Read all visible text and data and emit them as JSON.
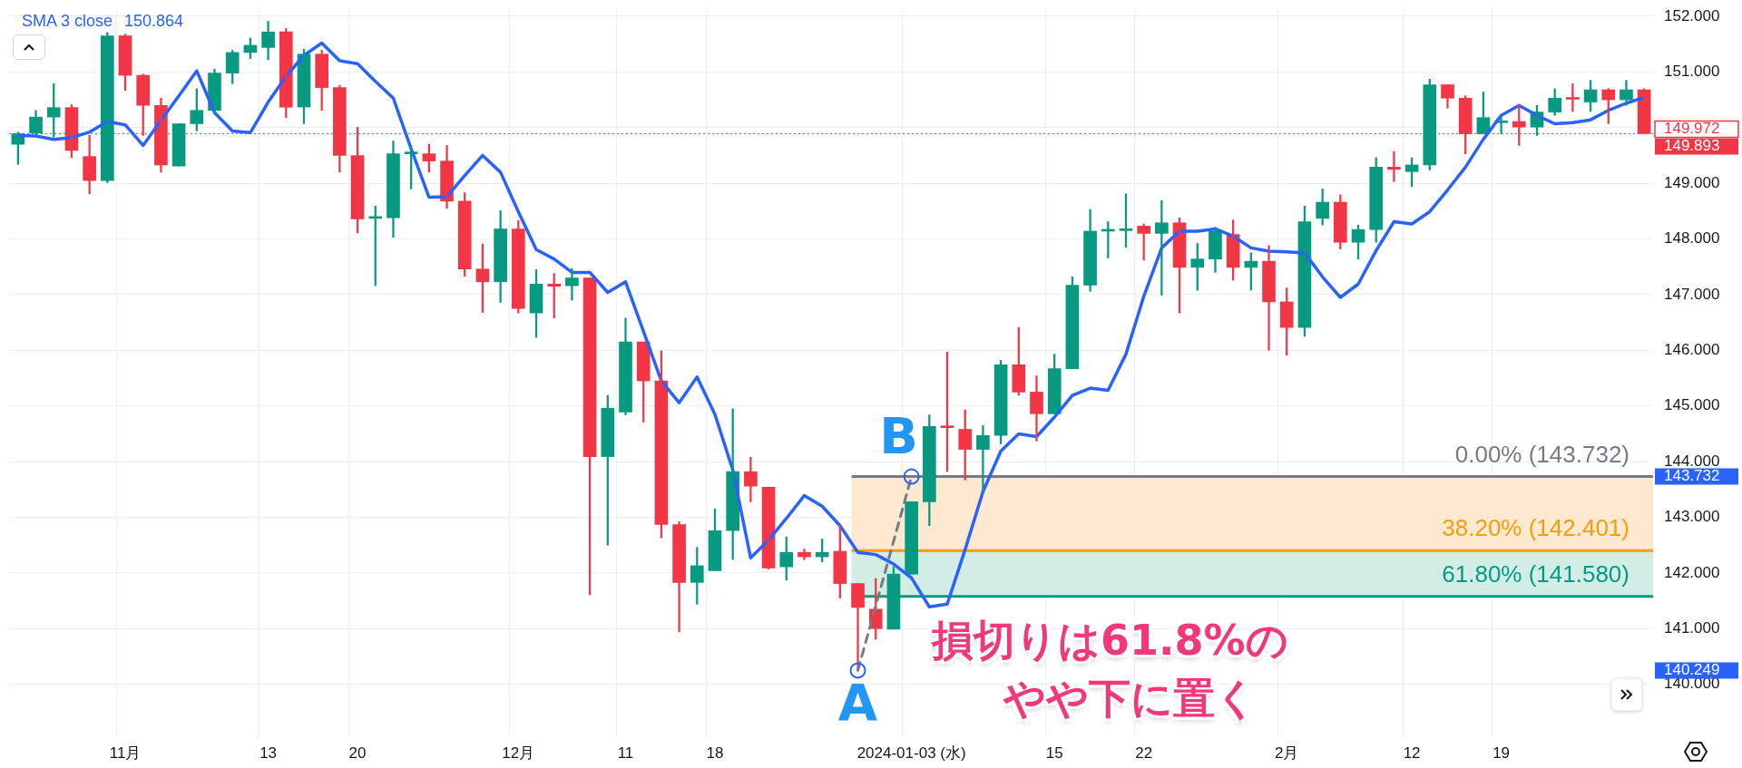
{
  "chart_data": {
    "type": "candlestick",
    "categories": [
      null,
      null,
      null,
      null,
      null,
      null,
      "11月",
      null,
      null,
      null,
      null,
      null,
      null,
      null,
      "13",
      null,
      null,
      null,
      null,
      "20",
      null,
      null,
      null,
      null,
      null,
      null,
      null,
      null,
      "12月",
      null,
      null,
      null,
      null,
      null,
      "11",
      null,
      null,
      null,
      null,
      "18",
      null,
      null,
      null,
      null,
      null,
      null,
      null,
      null,
      null,
      null,
      "2024-01-03 (水)",
      null,
      null,
      null,
      null,
      null,
      null,
      null,
      "15",
      null,
      null,
      null,
      null,
      "22",
      null,
      null,
      null,
      null,
      null,
      null,
      null,
      "2月",
      null,
      null,
      null,
      null,
      null,
      null,
      "12",
      null,
      null,
      null,
      null,
      "19",
      null,
      null,
      null,
      null,
      null,
      null,
      null,
      null
    ],
    "ohlc": [
      [
        149.7,
        149.92,
        149.34,
        149.89
      ],
      [
        149.9,
        150.31,
        149.86,
        150.19
      ],
      [
        150.19,
        150.79,
        149.83,
        150.36
      ],
      [
        150.36,
        150.41,
        149.46,
        149.59
      ],
      [
        149.48,
        149.86,
        148.81,
        149.05
      ],
      [
        149.05,
        151.71,
        149.01,
        151.65
      ],
      [
        151.65,
        151.68,
        150.67,
        150.94
      ],
      [
        150.94,
        150.96,
        149.86,
        150.4
      ],
      [
        150.4,
        150.53,
        149.2,
        149.33
      ],
      [
        149.31,
        150.07,
        149.31,
        150.07
      ],
      [
        150.07,
        150.7,
        149.94,
        150.31
      ],
      [
        150.31,
        151.05,
        150.27,
        150.98
      ],
      [
        150.98,
        151.39,
        150.79,
        151.35
      ],
      [
        151.35,
        151.61,
        151.24,
        151.48
      ],
      [
        151.44,
        151.91,
        151.22,
        151.72
      ],
      [
        151.72,
        151.78,
        150.18,
        150.37
      ],
      [
        150.37,
        151.41,
        150.07,
        151.32
      ],
      [
        151.32,
        151.39,
        150.31,
        150.72
      ],
      [
        150.72,
        150.76,
        149.2,
        149.5
      ],
      [
        149.5,
        150.01,
        148.11,
        148.36
      ],
      [
        148.37,
        148.59,
        147.16,
        148.38
      ],
      [
        148.38,
        149.76,
        148.03,
        149.53
      ],
      [
        149.53,
        149.68,
        148.9,
        149.55
      ],
      [
        149.53,
        149.7,
        149.2,
        149.4
      ],
      [
        149.4,
        149.68,
        148.55,
        148.68
      ],
      [
        148.68,
        148.83,
        147.33,
        147.46
      ],
      [
        147.46,
        147.91,
        146.68,
        147.23
      ],
      [
        147.23,
        148.51,
        146.86,
        148.18
      ],
      [
        148.18,
        148.33,
        146.67,
        146.75
      ],
      [
        146.67,
        147.45,
        146.23,
        147.19
      ],
      [
        147.19,
        147.38,
        146.58,
        147.15
      ],
      [
        147.16,
        147.47,
        146.9,
        147.3
      ],
      [
        147.3,
        147.3,
        141.61,
        144.09
      ],
      [
        144.09,
        145.19,
        142.5,
        144.96
      ],
      [
        144.89,
        146.58,
        144.84,
        146.15
      ],
      [
        146.15,
        146.15,
        144.71,
        145.45
      ],
      [
        145.45,
        145.99,
        142.63,
        142.87
      ],
      [
        142.87,
        142.92,
        140.94,
        141.83
      ],
      [
        141.83,
        142.46,
        141.44,
        142.13
      ],
      [
        142.04,
        143.15,
        142.04,
        142.76
      ],
      [
        142.76,
        144.95,
        142.24,
        143.82
      ],
      [
        143.82,
        144.08,
        143.28,
        143.56
      ],
      [
        143.54,
        143.54,
        142.07,
        142.09
      ],
      [
        142.11,
        142.65,
        141.87,
        142.37
      ],
      [
        142.37,
        142.43,
        142.24,
        142.29
      ],
      [
        142.29,
        142.61,
        142.2,
        142.37
      ],
      [
        142.39,
        142.85,
        141.55,
        141.81
      ],
      [
        141.81,
        141.81,
        140.249,
        141.38
      ],
      [
        141.35,
        141.9,
        140.81,
        141.0
      ],
      [
        140.99,
        142.11,
        140.99,
        141.98
      ],
      [
        141.98,
        143.28,
        141.98,
        143.28
      ],
      [
        143.28,
        144.84,
        142.85,
        144.63
      ],
      [
        144.63,
        145.97,
        143.82,
        144.61
      ],
      [
        144.58,
        144.93,
        143.67,
        144.22
      ],
      [
        144.22,
        144.65,
        143.46,
        144.47
      ],
      [
        144.47,
        145.82,
        144.32,
        145.74
      ],
      [
        145.74,
        146.41,
        145.19,
        145.25
      ],
      [
        145.25,
        145.54,
        144.37,
        144.86
      ],
      [
        144.86,
        145.93,
        144.86,
        145.67
      ],
      [
        145.67,
        147.32,
        145.67,
        147.17
      ],
      [
        147.17,
        148.53,
        147.06,
        148.14
      ],
      [
        148.14,
        148.31,
        147.66,
        148.16
      ],
      [
        148.15,
        148.81,
        147.85,
        148.16
      ],
      [
        148.23,
        148.27,
        147.62,
        148.1
      ],
      [
        148.1,
        148.69,
        146.99,
        148.29
      ],
      [
        148.29,
        148.38,
        146.67,
        147.49
      ],
      [
        147.49,
        147.92,
        147.08,
        147.64
      ],
      [
        147.64,
        148.21,
        147.4,
        148.14
      ],
      [
        148.08,
        148.34,
        147.26,
        147.49
      ],
      [
        147.49,
        147.75,
        147.08,
        147.6
      ],
      [
        147.6,
        147.88,
        146.0,
        146.87
      ],
      [
        146.87,
        147.12,
        145.91,
        146.41
      ],
      [
        146.41,
        148.59,
        146.25,
        148.31
      ],
      [
        148.37,
        148.9,
        148.25,
        148.66
      ],
      [
        148.66,
        148.79,
        147.82,
        147.94
      ],
      [
        147.94,
        148.25,
        147.64,
        148.17
      ],
      [
        148.17,
        149.46,
        147.94,
        149.29
      ],
      [
        149.29,
        149.57,
        149.03,
        149.25
      ],
      [
        149.21,
        149.46,
        148.94,
        149.33
      ],
      [
        149.33,
        150.87,
        149.24,
        150.77
      ],
      [
        150.77,
        150.77,
        150.35,
        150.53
      ],
      [
        150.53,
        150.57,
        149.53,
        149.89
      ],
      [
        149.89,
        150.64,
        149.89,
        150.18
      ],
      [
        150.09,
        150.18,
        149.89,
        150.11
      ],
      [
        150.11,
        150.41,
        149.68,
        150.01
      ],
      [
        150.01,
        150.4,
        149.86,
        150.28
      ],
      [
        150.28,
        150.7,
        150.22,
        150.53
      ],
      [
        150.53,
        150.79,
        150.29,
        150.51
      ],
      [
        150.46,
        150.85,
        150.29,
        150.68
      ],
      [
        150.68,
        150.7,
        150.07,
        150.5
      ],
      [
        150.5,
        150.85,
        150.4,
        150.68
      ],
      [
        150.68,
        150.7,
        149.89,
        149.893
      ]
    ],
    "series": [
      {
        "name": "SMA 3 close",
        "type": "line",
        "color": "#2962ff",
        "values": [
          149.86,
          149.85,
          149.79,
          149.82,
          149.92,
          150.11,
          150.05,
          149.68,
          150.13,
          150.57,
          151.02,
          150.27,
          149.94,
          149.91,
          150.46,
          150.92,
          151.3,
          151.52,
          151.2,
          151.15,
          150.83,
          150.53,
          149.62,
          148.75,
          148.76,
          149.14,
          149.5,
          149.2,
          148.49,
          147.81,
          147.64,
          147.4,
          147.4,
          147.04,
          147.23,
          146.34,
          145.45,
          145.06,
          145.52,
          144.85,
          143.85,
          142.27,
          142.59,
          142.98,
          143.39,
          143.2,
          142.85,
          142.37,
          142.33,
          142.16,
          141.91,
          141.39,
          141.44,
          142.42,
          143.46,
          144.19,
          144.5,
          144.45,
          144.8,
          145.19,
          145.32,
          145.28,
          145.93,
          146.97,
          147.84,
          148.14,
          148.14,
          148.18,
          148.05,
          147.84,
          147.78,
          147.77,
          147.75,
          147.32,
          146.95,
          147.19,
          147.79,
          148.31,
          148.27,
          148.49,
          148.88,
          149.29,
          149.79,
          150.22,
          150.4,
          150.22,
          150.07,
          150.09,
          150.14,
          150.31,
          150.44,
          150.54
        ]
      },
      {
        "type": "line",
        "color": "#787b86",
        "line_style": "dashed",
        "marker": "circle",
        "values": [
          null,
          null,
          null,
          null,
          null,
          null,
          null,
          null,
          null,
          null,
          null,
          null,
          null,
          null,
          null,
          null,
          null,
          null,
          null,
          null,
          null,
          null,
          null,
          null,
          null,
          null,
          null,
          null,
          null,
          null,
          null,
          null,
          null,
          null,
          null,
          null,
          null,
          null,
          null,
          null,
          null,
          null,
          null,
          null,
          null,
          null,
          null,
          140.249,
          null,
          null,
          143.732,
          null,
          null,
          null,
          null,
          null,
          null,
          null,
          null,
          null,
          null,
          null,
          null,
          null,
          null,
          null,
          null,
          null,
          null,
          null,
          null,
          null,
          null,
          null,
          null,
          null,
          null,
          null,
          null,
          null,
          null,
          null,
          null,
          null,
          null,
          null,
          null,
          null,
          null,
          null,
          null,
          null
        ],
        "value_labels": [
          null,
          null,
          null,
          null,
          null,
          null,
          null,
          null,
          null,
          null,
          null,
          null,
          null,
          null,
          null,
          null,
          null,
          null,
          null,
          null,
          null,
          null,
          null,
          null,
          null,
          null,
          null,
          null,
          null,
          null,
          null,
          null,
          null,
          null,
          null,
          null,
          null,
          null,
          null,
          null,
          null,
          null,
          null,
          null,
          null,
          null,
          null,
          "A",
          null,
          null,
          "B",
          null,
          null,
          null,
          null,
          null,
          null,
          null,
          null,
          null,
          null,
          null,
          null,
          null,
          null,
          null,
          null,
          null,
          null,
          null,
          null,
          null,
          null,
          null,
          null,
          null,
          null,
          null,
          null,
          null,
          null,
          null,
          null,
          null,
          null,
          null,
          null,
          null,
          null,
          null,
          null,
          null
        ]
      }
    ],
    "ylim": [
      139.05,
      152.13
    ],
    "yticks": [
      {
        "value": 140,
        "label": "140.000"
      },
      {
        "value": 141,
        "label": "141.000"
      },
      {
        "value": 142,
        "label": "142.000"
      },
      {
        "value": 143,
        "label": "143.000"
      },
      {
        "value": 144,
        "label": "144.000"
      },
      {
        "value": 145,
        "label": "145.000"
      },
      {
        "value": 146,
        "label": "146.000"
      },
      {
        "value": 147,
        "label": "147.000"
      },
      {
        "value": 148,
        "label": "148.000"
      },
      {
        "value": 149,
        "label": "149.000"
      },
      {
        "value": 150,
        "label": null
      },
      {
        "value": 151,
        "label": "151.000"
      },
      {
        "value": 152,
        "label": "152.000"
      },
      {
        "value": 149.972,
        "label": "149.972"
      },
      {
        "value": 143.732,
        "label": "143.732"
      },
      {
        "value": 140.249,
        "label": "140.249"
      }
    ],
    "grid": true,
    "legend": "top left",
    "bands": [
      {
        "axis": "y",
        "from": 142.401,
        "to": 143.732,
        "color": "#fde9cf"
      },
      {
        "axis": "y",
        "from": 141.58,
        "to": 142.401,
        "color": "#d1ede6"
      }
    ],
    "ref_lines": [
      {
        "axis": "y",
        "value": 143.732,
        "label": "0.00% (143.732)",
        "color": "#787b86"
      },
      {
        "axis": "y",
        "value": 142.401,
        "label": "38.20% (142.401)",
        "color": "#f59d0a"
      },
      {
        "axis": "y",
        "value": 141.58,
        "label": "61.80% (141.580)",
        "color": "#089981"
      },
      {
        "axis": "y",
        "value": 149.893,
        "label": "149.893",
        "color": "#f23645",
        "line_style": "dotted"
      }
    ],
    "annotations": [
      "150.864",
      "損切りは61.8%の",
      "やや下に置く"
    ]
  }
}
